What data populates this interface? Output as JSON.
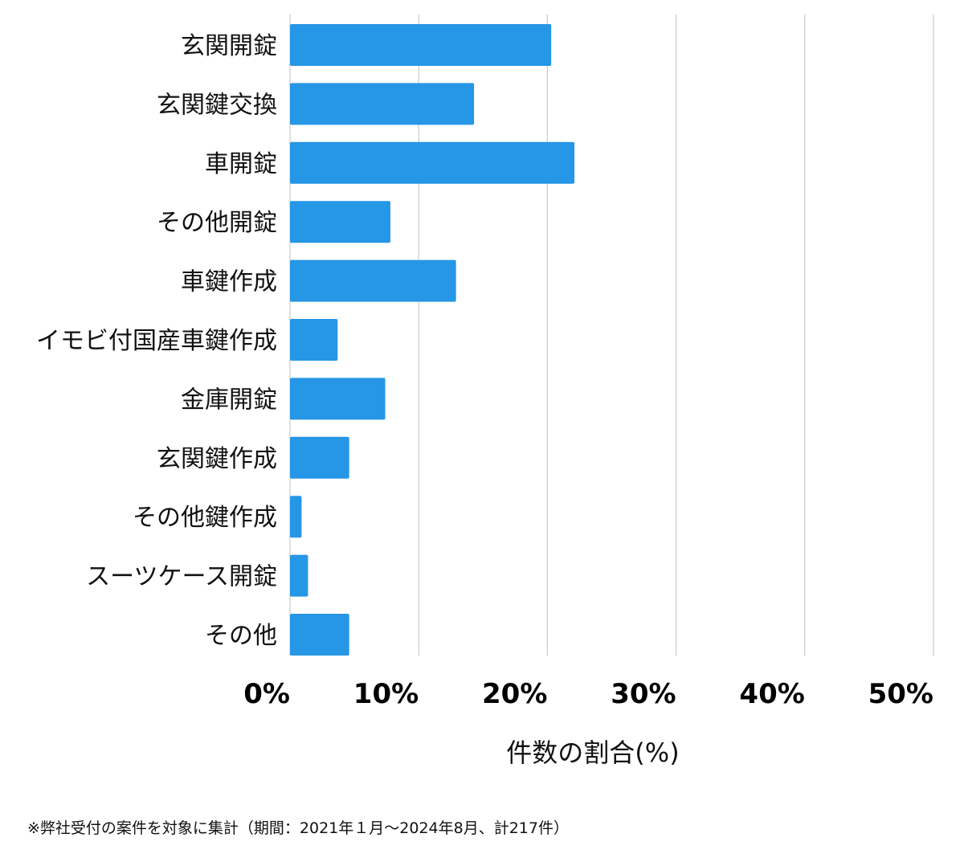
{
  "colors": {
    "bar": "#2696e6",
    "grid": "#cccccc",
    "text": "#111111",
    "background": "#ffffff"
  },
  "chart_data": {
    "type": "bar",
    "orientation": "horizontal",
    "categories": [
      "玄関開錠",
      "玄関鍵交換",
      "車開錠",
      "その他開錠",
      "車鍵作成",
      "イモビ付国産車鍵作成",
      "金庫開錠",
      "玄関鍵作成",
      "その他鍵作成",
      "スーツケース開錠",
      "その他"
    ],
    "values": [
      20.3,
      14.3,
      22.1,
      7.8,
      12.9,
      3.7,
      7.4,
      4.6,
      0.9,
      1.4,
      4.6
    ],
    "xlabel": "件数の割合(%)",
    "xlim": [
      0,
      50
    ],
    "xticks": [
      0,
      10,
      20,
      30,
      40,
      50
    ],
    "tick_labels": [
      "0%",
      "10%",
      "20%",
      "30%",
      "40%",
      "50%"
    ],
    "grid": "vertical"
  },
  "footnote": "※弊社受付の案件を対象に集計（期間：2021年１月～2024年8月、計217件）"
}
